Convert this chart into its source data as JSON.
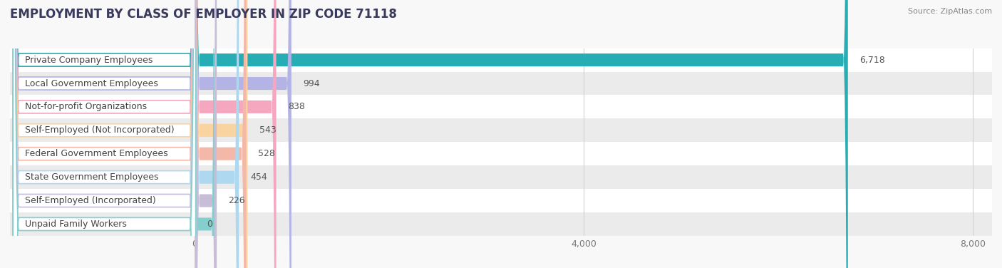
{
  "title": "EMPLOYMENT BY CLASS OF EMPLOYER IN ZIP CODE 71118",
  "source": "Source: ZipAtlas.com",
  "categories": [
    "Private Company Employees",
    "Local Government Employees",
    "Not-for-profit Organizations",
    "Self-Employed (Not Incorporated)",
    "Federal Government Employees",
    "State Government Employees",
    "Self-Employed (Incorporated)",
    "Unpaid Family Workers"
  ],
  "values": [
    6718,
    994,
    838,
    543,
    528,
    454,
    226,
    0
  ],
  "bar_colors": [
    "#29adb5",
    "#b3b3e6",
    "#f4a7be",
    "#f9d4a0",
    "#f4b8a8",
    "#add8f0",
    "#c8bdd8",
    "#85cece"
  ],
  "xlim": [
    0,
    8400
  ],
  "xticks": [
    0,
    4000,
    8000
  ],
  "bg_color": "#f0f0f0",
  "row_bg_even": "#ffffff",
  "row_bg_odd": "#ebebeb",
  "title_fontsize": 12,
  "tick_fontsize": 9,
  "source_fontsize": 8,
  "cat_fontsize": 9,
  "val_fontsize": 9
}
